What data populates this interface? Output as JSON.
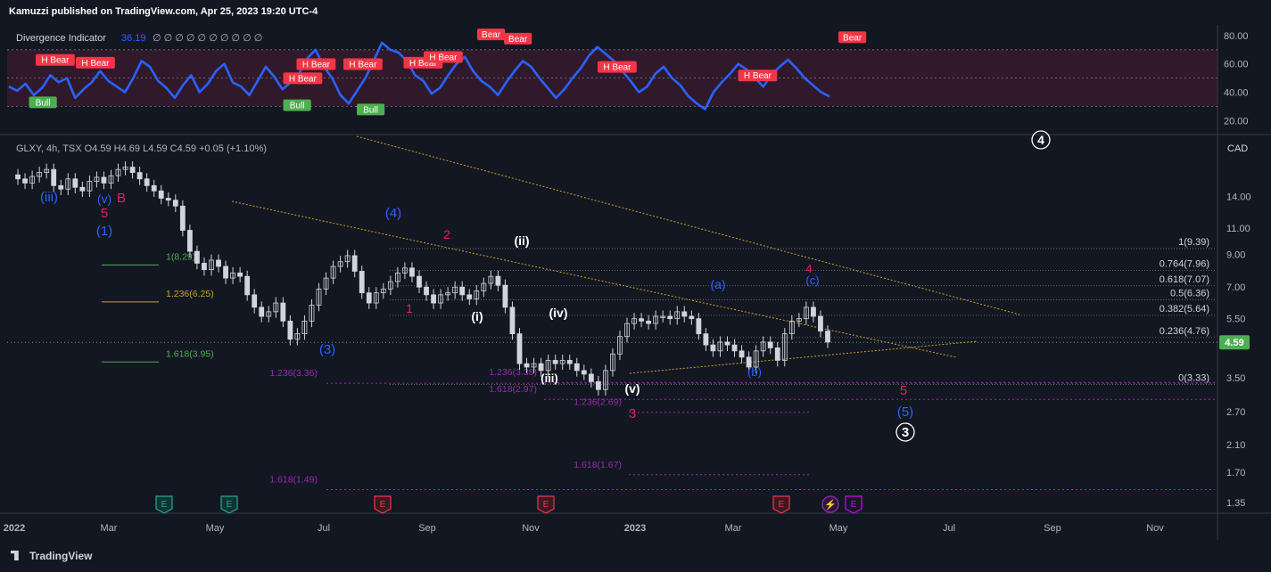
{
  "header": {
    "publisher": "Kamuzzi published on TradingView.com, Apr 25, 2023 19:20 UTC-4"
  },
  "footer": {
    "brand": "TradingView"
  },
  "indicator": {
    "name": "Divergence Indicator",
    "value": "36.19",
    "placeholders": "∅ ∅ ∅ ∅ ∅ ∅ ∅ ∅ ∅ ∅",
    "axis_ticks": [
      "80.00",
      "60.00",
      "40.00",
      "20.00"
    ]
  },
  "main": {
    "symbol_line": "GLXY, 4h, TSX  O4.59  H4.69  L4.59  C4.59  +0.05 (+1.10%)",
    "currency": "CAD",
    "price_badge": "4.59",
    "x_axis": [
      "2022",
      "Mar",
      "May",
      "Jul",
      "Sep",
      "Nov",
      "2023",
      "Mar",
      "May",
      "Jul",
      "Sep",
      "Nov"
    ],
    "fib_right": [
      "1(9.39)",
      "0.764(7.96)",
      "0.618(7.07)",
      "0.5(6.36)",
      "0.382(5.64)",
      "0.236(4.76)",
      "0(3.33)"
    ]
  },
  "chart_data": [
    {
      "type": "line",
      "title": "Divergence Indicator",
      "y_ticks": [
        80,
        60,
        40,
        20
      ],
      "ylim": [
        12,
        85
      ],
      "guide_levels": [
        70,
        50,
        30
      ],
      "series": [
        {
          "name": "Divergence Indicator",
          "color": "#2962ff",
          "values": [
            44,
            41,
            46,
            38,
            43,
            52,
            47,
            50,
            36,
            42,
            47,
            55,
            48,
            44,
            40,
            50,
            62,
            58,
            48,
            43,
            36,
            45,
            52,
            40,
            46,
            55,
            60,
            47,
            44,
            38,
            48,
            58,
            51,
            42,
            47,
            53,
            64,
            70,
            58,
            50,
            38,
            32,
            41,
            50,
            62,
            75,
            70,
            68,
            62,
            52,
            48,
            39,
            43,
            52,
            60,
            65,
            55,
            48,
            44,
            38,
            47,
            55,
            62,
            58,
            50,
            43,
            36,
            42,
            50,
            57,
            66,
            72,
            67,
            62,
            55,
            48,
            40,
            44,
            53,
            58,
            50,
            45,
            37,
            32,
            28,
            40,
            47,
            53,
            60,
            56,
            50,
            44,
            52,
            58,
            63,
            57,
            50,
            45,
            40,
            37
          ]
        }
      ],
      "annotations": [
        {
          "text": "H Bear",
          "kind": "bear",
          "x": 0.02,
          "y": 60
        },
        {
          "text": "H Bear",
          "kind": "bear",
          "x": 0.05,
          "y": 58
        },
        {
          "text": "Bull",
          "kind": "bull",
          "x": 0.015,
          "y": 30
        },
        {
          "text": "H Bear",
          "kind": "bear",
          "x": 0.205,
          "y": 47
        },
        {
          "text": "H Bear",
          "kind": "bear",
          "x": 0.215,
          "y": 57
        },
        {
          "text": "Bull",
          "kind": "bull",
          "x": 0.205,
          "y": 28
        },
        {
          "text": "H Bear",
          "kind": "bear",
          "x": 0.25,
          "y": 57
        },
        {
          "text": "Bull",
          "kind": "bull",
          "x": 0.26,
          "y": 25
        },
        {
          "text": "H Bear",
          "kind": "bear",
          "x": 0.295,
          "y": 58
        },
        {
          "text": "H Bear",
          "kind": "bear",
          "x": 0.31,
          "y": 62
        },
        {
          "text": "Bear",
          "kind": "bear",
          "x": 0.35,
          "y": 78
        },
        {
          "text": "Bear",
          "kind": "bear",
          "x": 0.37,
          "y": 75
        },
        {
          "text": "H Bear",
          "kind": "bear",
          "x": 0.44,
          "y": 55
        },
        {
          "text": "H Bear",
          "kind": "bear",
          "x": 0.545,
          "y": 49
        },
        {
          "text": "Bear",
          "kind": "bear",
          "x": 0.62,
          "y": 76
        }
      ]
    },
    {
      "type": "line",
      "title": "GLXY, 4h, TSX",
      "y_scale": "log",
      "y_ticks": [
        14.0,
        11.0,
        9.0,
        7.0,
        5.5,
        3.5,
        2.7,
        2.1,
        1.7,
        1.35
      ],
      "ylim": [
        1.27,
        22
      ],
      "x_range": [
        "2022-01",
        "2023-11"
      ],
      "series": [
        {
          "name": "GLXY",
          "color": "#d1d4dc",
          "values": [
            16.5,
            16.0,
            15.5,
            16.3,
            16.8,
            17.2,
            15.2,
            14.8,
            16.0,
            15.0,
            14.6,
            15.7,
            16.2,
            15.5,
            16.4,
            17.2,
            17.5,
            16.8,
            16.0,
            15.2,
            14.6,
            13.8,
            13.6,
            13.0,
            10.8,
            9.2,
            8.4,
            8.0,
            8.6,
            8.2,
            7.5,
            7.8,
            7.6,
            6.6,
            6.0,
            5.6,
            5.8,
            6.2,
            5.4,
            4.7,
            4.9,
            5.4,
            6.1,
            6.9,
            7.5,
            8.2,
            8.5,
            8.9,
            7.9,
            6.7,
            6.2,
            6.7,
            6.9,
            7.3,
            7.8,
            8.1,
            7.6,
            7.0,
            6.6,
            6.2,
            6.6,
            6.7,
            7.0,
            6.6,
            6.4,
            6.8,
            7.2,
            7.6,
            7.1,
            6.0,
            4.9,
            3.9,
            3.8,
            3.9,
            3.7,
            4.0,
            3.9,
            4.0,
            3.9,
            3.7,
            3.6,
            3.4,
            3.2,
            3.7,
            4.2,
            4.8,
            5.3,
            5.5,
            5.4,
            5.3,
            5.6,
            5.6,
            5.5,
            5.8,
            5.6,
            5.5,
            4.9,
            4.5,
            4.3,
            4.6,
            4.5,
            4.3,
            4.1,
            3.8,
            4.3,
            4.6,
            4.4,
            4.0,
            4.9,
            5.4,
            5.5,
            6.0,
            5.6,
            5.0,
            4.6
          ]
        }
      ],
      "fibonacci_right": [
        {
          "label": "1(9.39)",
          "price": 9.39
        },
        {
          "label": "0.764(7.96)",
          "price": 7.96
        },
        {
          "label": "0.618(7.07)",
          "price": 7.07
        },
        {
          "label": "0.5(6.36)",
          "price": 6.36
        },
        {
          "label": "0.382(5.64)",
          "price": 5.64
        },
        {
          "label": "0.236(4.76)",
          "price": 4.76
        },
        {
          "label": "0(3.33)",
          "price": 3.33
        }
      ],
      "fibonacci_extensions": [
        {
          "label": "1(8.29)",
          "price": 8.29,
          "color": "#4caf50"
        },
        {
          "label": "1.236(6.25)",
          "price": 6.25,
          "color": "#c9a227"
        },
        {
          "label": "1.618(3.95)",
          "price": 3.95,
          "color": "#4caf50"
        },
        {
          "label": "1.236(3.36)",
          "price": 3.36,
          "color": "#9c27b0"
        },
        {
          "label": "1.618(1.49)",
          "price": 1.49,
          "color": "#9c27b0"
        },
        {
          "label": "1.236(3.38)",
          "price": 3.38,
          "color": "#9c27b0"
        },
        {
          "label": "1.618(2.97)",
          "price": 2.97,
          "color": "#9c27b0"
        },
        {
          "label": "1.236(2.69)",
          "price": 2.69,
          "color": "#9c27b0"
        },
        {
          "label": "1.618(1.67)",
          "price": 1.67,
          "color": "#9c27b0"
        }
      ],
      "wave_labels": [
        {
          "text": "(iii)",
          "color": "#2962ff"
        },
        {
          "text": "(v)",
          "color": "#2962ff"
        },
        {
          "text": "B",
          "color": "#e91e63"
        },
        {
          "text": "5",
          "color": "#e91e63"
        },
        {
          "text": "(1)",
          "color": "#2962ff"
        },
        {
          "text": "(4)",
          "color": "#2962ff"
        },
        {
          "text": "2",
          "color": "#e91e63"
        },
        {
          "text": "(ii)",
          "color": "#ffffff"
        },
        {
          "text": "1",
          "color": "#e91e63"
        },
        {
          "text": "(i)",
          "color": "#ffffff"
        },
        {
          "text": "(iv)",
          "color": "#ffffff"
        },
        {
          "text": "(3)",
          "color": "#2962ff"
        },
        {
          "text": "(iii)",
          "color": "#ffffff"
        },
        {
          "text": "(v)",
          "color": "#ffffff"
        },
        {
          "text": "3",
          "color": "#e91e63"
        },
        {
          "text": "(a)",
          "color": "#2962ff"
        },
        {
          "text": "(b)",
          "color": "#2962ff"
        },
        {
          "text": "(c)",
          "color": "#2962ff"
        },
        {
          "text": "4",
          "color": "#e91e63"
        },
        {
          "text": "5",
          "color": "#e91e63"
        },
        {
          "text": "(5)",
          "color": "#2962ff"
        },
        {
          "text": "3",
          "color": "#ffffff"
        },
        {
          "text": "4",
          "color": "#ffffff"
        }
      ],
      "event_markers": [
        {
          "text": "E",
          "kind": "earnings-past"
        },
        {
          "text": "E",
          "kind": "earnings-past"
        },
        {
          "text": "E",
          "kind": "earnings-miss"
        },
        {
          "text": "E",
          "kind": "earnings-miss"
        },
        {
          "text": "E",
          "kind": "earnings-miss"
        },
        {
          "text": "⚡",
          "kind": "flash"
        },
        {
          "text": "E",
          "kind": "earnings-future"
        }
      ]
    }
  ]
}
